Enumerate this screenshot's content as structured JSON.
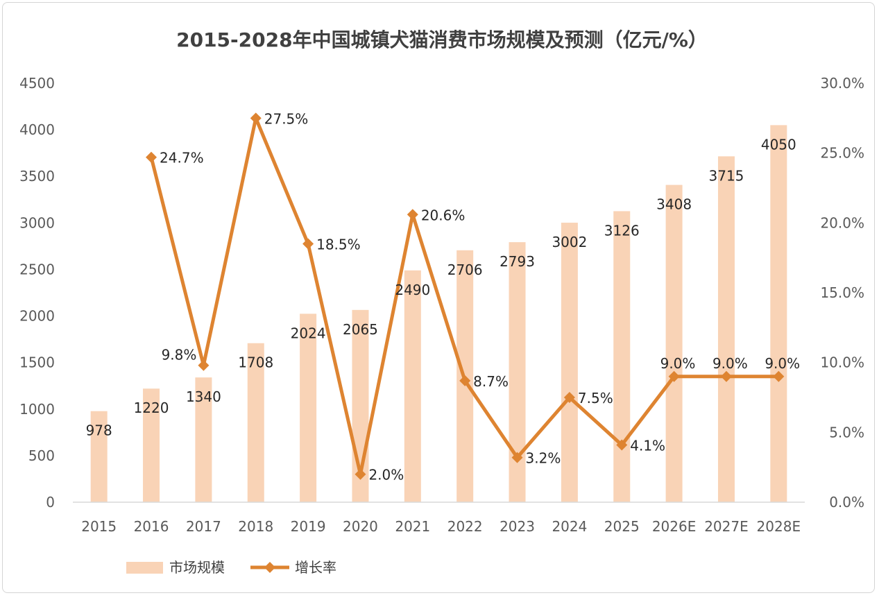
{
  "chart_data": {
    "type": "bar+line",
    "title": "2015-2028年中国城镇犬猫消费市场规模及预测（亿元/%）",
    "categories": [
      "2015",
      "2016",
      "2017",
      "2018",
      "2019",
      "2020",
      "2021",
      "2022",
      "2023",
      "2024",
      "2025",
      "2026E",
      "2027E",
      "2028E"
    ],
    "series": [
      {
        "name": "市场规模",
        "type": "bar",
        "axis": "left",
        "color": "#f9d3b6",
        "values": [
          978,
          1220,
          1340,
          1708,
          2024,
          2065,
          2490,
          2706,
          2793,
          3002,
          3126,
          3408,
          3715,
          4050
        ],
        "labels": [
          "978",
          "1220",
          "1340",
          "1708",
          "2024",
          "2065",
          "2490",
          "2706",
          "2793",
          "3002",
          "3126",
          "3408",
          "3715",
          "4050"
        ]
      },
      {
        "name": "增长率",
        "type": "line",
        "axis": "right",
        "color": "#de8431",
        "marker": "diamond",
        "values": [
          null,
          24.7,
          9.8,
          27.5,
          18.5,
          2.0,
          20.6,
          8.7,
          3.2,
          7.5,
          4.1,
          9.0,
          9.0,
          9.0
        ],
        "labels": [
          "",
          "24.7%",
          "9.8%",
          "27.5%",
          "18.5%",
          "2.0%",
          "20.6%",
          "8.7%",
          "3.2%",
          "7.5%",
          "4.1%",
          "9.0%",
          "9.0%",
          "9.0%"
        ]
      }
    ],
    "y_left": {
      "min": 0,
      "max": 4500,
      "ticks": [
        "0",
        "500",
        "1000",
        "1500",
        "2000",
        "2500",
        "3000",
        "3500",
        "4000",
        "4500"
      ]
    },
    "y_right": {
      "min": 0,
      "max": 30,
      "ticks": [
        "0.0%",
        "5.0%",
        "10.0%",
        "15.0%",
        "20.0%",
        "25.0%",
        "30.0%"
      ]
    },
    "grid": false,
    "legend": "bottom-left"
  }
}
